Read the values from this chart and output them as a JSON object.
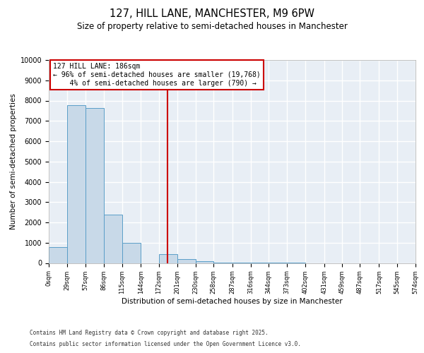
{
  "title": "127, HILL LANE, MANCHESTER, M9 6PW",
  "subtitle": "Size of property relative to semi-detached houses in Manchester",
  "xlabel": "Distribution of semi-detached houses by size in Manchester",
  "ylabel": "Number of semi-detached properties",
  "bin_edges": [
    0,
    29,
    57,
    86,
    115,
    144,
    172,
    201,
    230,
    258,
    287,
    316,
    344,
    373,
    402,
    431,
    459,
    487,
    517,
    545,
    574
  ],
  "bin_counts": [
    800,
    7780,
    7620,
    2380,
    1000,
    0,
    450,
    200,
    80,
    25,
    8,
    3,
    1,
    1,
    0,
    0,
    0,
    0,
    0,
    0
  ],
  "bar_color": "#c8d9e8",
  "bar_edge_color": "#5a9ec8",
  "vline_color": "#cc0000",
  "vline_x": 186,
  "annotation_text": "127 HILL LANE: 186sqm\n← 96% of semi-detached houses are smaller (19,768)\n    4% of semi-detached houses are larger (790) →",
  "annotation_box_color": "#ffffff",
  "annotation_box_edge": "#cc0000",
  "ylim": [
    0,
    10000
  ],
  "yticks": [
    0,
    1000,
    2000,
    3000,
    4000,
    5000,
    6000,
    7000,
    8000,
    9000,
    10000
  ],
  "footnote1": "Contains HM Land Registry data © Crown copyright and database right 2025.",
  "footnote2": "Contains public sector information licensed under the Open Government Licence v3.0.",
  "bg_color": "#e8eef5",
  "grid_color": "#ffffff",
  "title_fontsize": 10.5,
  "subtitle_fontsize": 8.5
}
